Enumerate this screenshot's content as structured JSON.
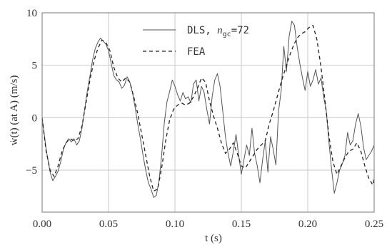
{
  "chart_data": {
    "type": "line",
    "title": "",
    "xlabel": "t (s)",
    "ylabel": "ẇ(t) (at A) (m/s)",
    "xlim": [
      0.0,
      0.25
    ],
    "ylim": [
      -9,
      10
    ],
    "xticks": [
      0.0,
      0.05,
      0.1,
      0.15,
      0.2,
      0.25
    ],
    "xtick_labels": [
      "0.00",
      "0.05",
      "0.10",
      "0.15",
      "0.20",
      "0.25"
    ],
    "yticks": [
      -5,
      0,
      5,
      10
    ],
    "ytick_labels": [
      "−5",
      "0",
      "5",
      "10"
    ],
    "grid": true,
    "legend_position": "top-center",
    "legend": {
      "dls_prefix": "DLS, ",
      "dls_var": "n",
      "dls_sub": "gc",
      "dls_suffix": "=72",
      "fea": "FEA"
    },
    "series": [
      {
        "name": "DLS, n_gc=72",
        "style": "solid",
        "color": "#555555",
        "x": [
          0.0,
          0.003,
          0.006,
          0.008,
          0.01,
          0.012,
          0.014,
          0.016,
          0.018,
          0.02,
          0.022,
          0.024,
          0.026,
          0.028,
          0.03,
          0.032,
          0.034,
          0.036,
          0.038,
          0.04,
          0.042,
          0.044,
          0.046,
          0.048,
          0.05,
          0.052,
          0.054,
          0.056,
          0.058,
          0.06,
          0.062,
          0.064,
          0.066,
          0.068,
          0.07,
          0.072,
          0.074,
          0.076,
          0.078,
          0.08,
          0.082,
          0.084,
          0.086,
          0.088,
          0.09,
          0.092,
          0.094,
          0.096,
          0.098,
          0.1,
          0.102,
          0.104,
          0.106,
          0.108,
          0.11,
          0.112,
          0.114,
          0.116,
          0.118,
          0.12,
          0.122,
          0.124,
          0.126,
          0.128,
          0.13,
          0.132,
          0.134,
          0.136,
          0.138,
          0.14,
          0.142,
          0.144,
          0.146,
          0.148,
          0.15,
          0.152,
          0.154,
          0.156,
          0.158,
          0.16,
          0.162,
          0.164,
          0.166,
          0.168,
          0.17,
          0.172,
          0.174,
          0.176,
          0.178,
          0.18,
          0.182,
          0.184,
          0.186,
          0.188,
          0.19,
          0.192,
          0.194,
          0.196,
          0.198,
          0.2,
          0.202,
          0.204,
          0.206,
          0.208,
          0.21,
          0.212,
          0.214,
          0.216,
          0.218,
          0.22,
          0.222,
          0.224,
          0.226,
          0.228,
          0.23,
          0.232,
          0.234,
          0.236,
          0.238,
          0.24,
          0.242,
          0.244,
          0.246,
          0.248,
          0.25
        ],
        "y": [
          0.0,
          -3.0,
          -5.2,
          -6.0,
          -5.6,
          -5.1,
          -4.2,
          -3.0,
          -2.4,
          -2.0,
          -2.3,
          -2.0,
          -2.6,
          -2.2,
          -1.0,
          0.8,
          2.5,
          4.0,
          5.5,
          6.6,
          7.2,
          7.6,
          7.3,
          7.0,
          6.4,
          5.2,
          4.0,
          3.6,
          3.4,
          2.8,
          3.1,
          3.9,
          3.4,
          2.4,
          1.0,
          -0.6,
          -2.0,
          -3.6,
          -5.0,
          -6.2,
          -6.8,
          -7.6,
          -7.4,
          -6.0,
          -3.6,
          -0.5,
          1.5,
          2.5,
          3.6,
          3.0,
          2.2,
          1.6,
          2.4,
          1.8,
          2.0,
          1.4,
          3.2,
          3.6,
          1.6,
          3.0,
          2.4,
          0.8,
          -0.6,
          2.0,
          3.6,
          4.2,
          3.0,
          0.6,
          -1.8,
          -3.4,
          -4.6,
          -3.2,
          -1.6,
          -3.6,
          -5.4,
          -4.0,
          -2.6,
          -3.6,
          -1.0,
          -3.4,
          -4.6,
          -6.2,
          -4.0,
          -2.2,
          -5.2,
          -1.8,
          -3.0,
          -4.5,
          0.6,
          2.6,
          6.8,
          4.4,
          7.8,
          9.2,
          8.8,
          6.8,
          5.2,
          3.8,
          2.6,
          4.4,
          3.0,
          3.6,
          4.6,
          3.2,
          3.8,
          2.0,
          0.6,
          -2.4,
          -5.0,
          -7.2,
          -6.2,
          -5.0,
          -4.4,
          -3.6,
          -1.4,
          -2.6,
          -2.2,
          -0.6,
          0.4,
          -0.8,
          -2.8,
          -4.0,
          -3.6,
          -3.2,
          -2.6
        ]
      },
      {
        "name": "FEA",
        "style": "dashed",
        "color": "#222222",
        "x": [
          0.0,
          0.003,
          0.006,
          0.009,
          0.012,
          0.015,
          0.018,
          0.021,
          0.024,
          0.027,
          0.03,
          0.033,
          0.036,
          0.039,
          0.042,
          0.045,
          0.048,
          0.051,
          0.054,
          0.057,
          0.06,
          0.063,
          0.066,
          0.069,
          0.072,
          0.075,
          0.078,
          0.081,
          0.084,
          0.087,
          0.09,
          0.093,
          0.096,
          0.099,
          0.102,
          0.105,
          0.108,
          0.111,
          0.114,
          0.117,
          0.12,
          0.123,
          0.126,
          0.129,
          0.132,
          0.135,
          0.138,
          0.141,
          0.144,
          0.147,
          0.15,
          0.153,
          0.156,
          0.159,
          0.162,
          0.165,
          0.168,
          0.171,
          0.174,
          0.177,
          0.18,
          0.183,
          0.186,
          0.189,
          0.192,
          0.195,
          0.198,
          0.201,
          0.204,
          0.207,
          0.21,
          0.213,
          0.216,
          0.219,
          0.222,
          0.225,
          0.228,
          0.231,
          0.234,
          0.237,
          0.24,
          0.243,
          0.246,
          0.249,
          0.25
        ],
        "y": [
          0.0,
          -3.2,
          -5.0,
          -5.6,
          -4.6,
          -3.2,
          -2.4,
          -2.0,
          -2.2,
          -2.0,
          -0.8,
          1.4,
          3.6,
          5.4,
          6.6,
          7.4,
          7.2,
          6.4,
          4.8,
          3.8,
          3.4,
          3.8,
          3.4,
          2.0,
          0.4,
          -1.6,
          -3.6,
          -5.6,
          -7.0,
          -6.8,
          -4.8,
          -2.2,
          -0.2,
          0.8,
          1.2,
          1.4,
          1.2,
          1.4,
          2.0,
          2.8,
          3.8,
          3.4,
          1.6,
          0.2,
          -1.0,
          -2.4,
          -3.4,
          -3.0,
          -2.4,
          -3.4,
          -4.6,
          -4.8,
          -4.2,
          -3.6,
          -3.0,
          -2.6,
          -2.2,
          -0.6,
          0.6,
          2.0,
          3.4,
          4.6,
          5.8,
          6.8,
          7.6,
          8.0,
          8.2,
          8.6,
          8.8,
          7.4,
          4.8,
          1.6,
          -1.8,
          -4.2,
          -5.4,
          -4.6,
          -3.8,
          -3.2,
          -3.0,
          -2.4,
          -3.2,
          -4.6,
          -5.8,
          -6.4,
          -5.8
        ]
      }
    ]
  }
}
